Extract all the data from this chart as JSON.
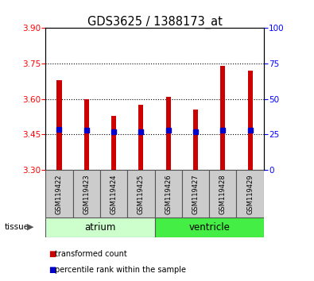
{
  "title": "GDS3625 / 1388173_at",
  "samples": [
    "GSM119422",
    "GSM119423",
    "GSM119424",
    "GSM119425",
    "GSM119426",
    "GSM119427",
    "GSM119428",
    "GSM119429"
  ],
  "transformed_counts": [
    3.68,
    3.6,
    3.53,
    3.575,
    3.61,
    3.555,
    3.74,
    3.72
  ],
  "percentile_values": [
    3.473,
    3.468,
    3.463,
    3.463,
    3.468,
    3.463,
    3.468,
    3.468
  ],
  "bar_bottom": 3.3,
  "ylim": [
    3.3,
    3.9
  ],
  "yticks_left": [
    3.3,
    3.45,
    3.6,
    3.75,
    3.9
  ],
  "yticks_right": [
    0,
    25,
    50,
    75,
    100
  ],
  "bar_color": "#cc0000",
  "blue_color": "#0000cc",
  "atrium_color": "#ccffcc",
  "ventricle_color": "#44ee44",
  "xticklabel_bg": "#cccccc",
  "legend_items": [
    {
      "color": "#cc0000",
      "label": "transformed count"
    },
    {
      "color": "#0000cc",
      "label": "percentile rank within the sample"
    }
  ],
  "bar_width": 0.18
}
